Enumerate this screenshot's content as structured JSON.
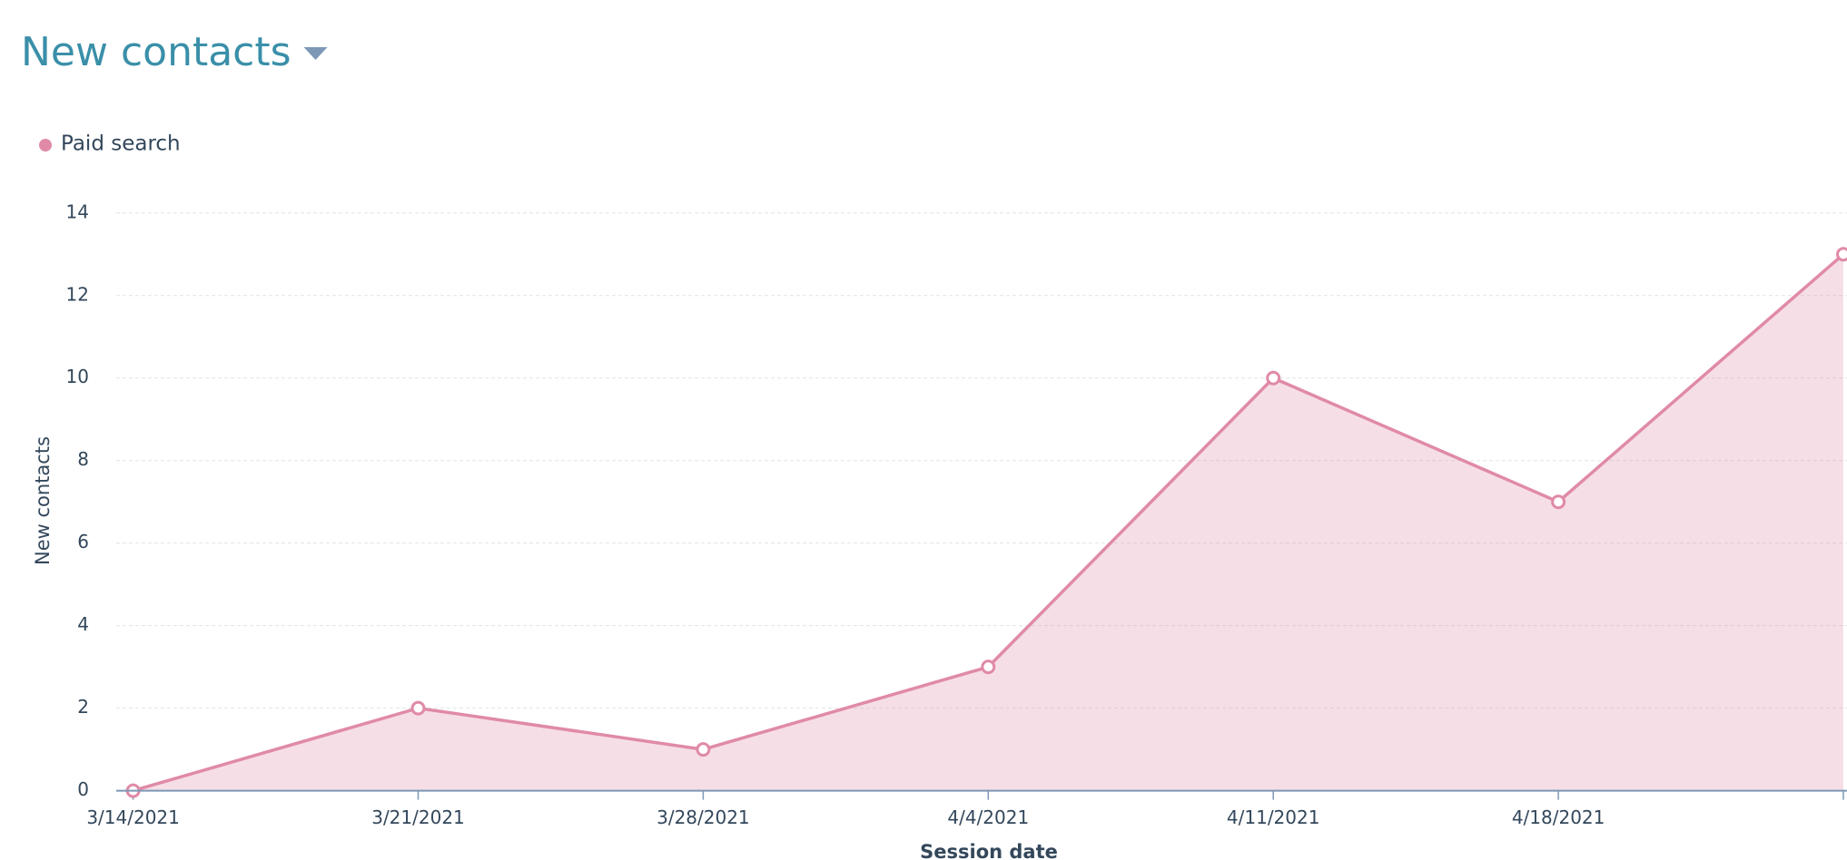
{
  "chart_data": {
    "type": "area",
    "title": "New contacts",
    "x_label": "Session date",
    "y_label": "New contacts",
    "categories": [
      "3/14/2021",
      "3/21/2021",
      "3/28/2021",
      "4/4/2021",
      "4/11/2021",
      "4/18/2021",
      null
    ],
    "series": [
      {
        "name": "Paid search",
        "color": "#e08aa8",
        "values": [
          0,
          2,
          1,
          3,
          10,
          7,
          13
        ]
      }
    ],
    "ylim": [
      0,
      14
    ],
    "yticks": [
      0,
      2,
      4,
      6,
      8,
      10,
      12,
      14
    ],
    "grid": true,
    "legend": "top-left"
  }
}
